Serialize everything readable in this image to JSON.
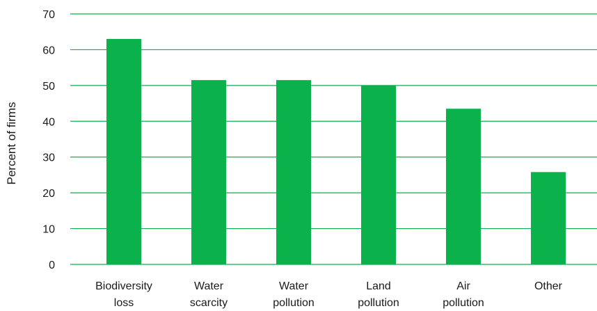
{
  "chart_data": {
    "type": "bar",
    "title": "",
    "xlabel": "",
    "ylabel": "Percent of firms",
    "categories": [
      [
        "Biodiversity",
        "loss"
      ],
      [
        "Water",
        "scarcity"
      ],
      [
        "Water",
        "pollution"
      ],
      [
        "Land",
        "pollution"
      ],
      [
        "Air",
        "pollution"
      ],
      [
        "Other"
      ]
    ],
    "values": [
      63,
      51.5,
      51.5,
      50,
      43.5,
      25.8
    ],
    "ylim": [
      0,
      70
    ],
    "yticks": [
      0,
      10,
      20,
      30,
      40,
      50,
      60,
      70
    ],
    "grid": true,
    "legend": "none",
    "colors": {
      "bar": "#0bb14a",
      "grid": "#0bb14a",
      "text": "#1a1a1a"
    }
  }
}
